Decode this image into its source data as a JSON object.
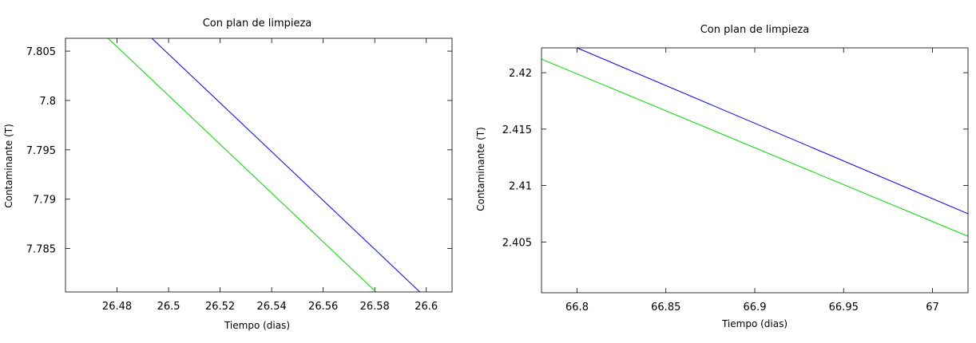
{
  "chart_data": [
    {
      "type": "line",
      "title": "Con plan de limpieza",
      "xlabel": "Tiempo (dias)",
      "ylabel": "Contaminante (T)",
      "xlim": [
        26.46,
        26.61
      ],
      "ylim": [
        7.7806,
        7.8063
      ],
      "xticks": [
        26.48,
        26.5,
        26.52,
        26.54,
        26.56,
        26.58,
        26.6
      ],
      "yticks": [
        7.785,
        7.79,
        7.795,
        7.8,
        7.805
      ],
      "xtick_labels": [
        "26.48",
        "26.5",
        "26.52",
        "26.54",
        "26.56",
        "26.58",
        "26.6"
      ],
      "ytick_labels": [
        "7.785",
        "7.79",
        "7.795",
        "7.8",
        "7.805"
      ],
      "grid": false,
      "series": [
        {
          "color": "#0000ff",
          "points": [
            [
              26.4935,
              7.8063
            ],
            [
              26.5975,
              7.7806
            ]
          ]
        },
        {
          "color": "#00dd00",
          "points": [
            [
              26.4765,
              7.8063
            ],
            [
              26.5805,
              7.7806
            ]
          ]
        }
      ]
    },
    {
      "type": "line",
      "title": "Con plan de limpieza",
      "xlabel": "Tiempo (dias)",
      "ylabel": "Contaminante (T)",
      "xlim": [
        66.78,
        67.02
      ],
      "ylim": [
        2.4005,
        2.4222
      ],
      "xticks": [
        66.8,
        66.85,
        66.9,
        66.95,
        67
      ],
      "yticks": [
        2.405,
        2.41,
        2.415,
        2.42
      ],
      "xtick_labels": [
        "66.8",
        "66.85",
        "66.9",
        "66.95",
        "67"
      ],
      "ytick_labels": [
        "2.405",
        "2.41",
        "2.415",
        "2.42"
      ],
      "grid": false,
      "series": [
        {
          "color": "#0000ff",
          "points": [
            [
              66.8,
              2.4222
            ],
            [
              67.02,
              2.4075
            ]
          ]
        },
        {
          "color": "#00dd00",
          "points": [
            [
              66.78,
              2.4212
            ],
            [
              67.02,
              2.4055
            ]
          ]
        }
      ]
    }
  ]
}
